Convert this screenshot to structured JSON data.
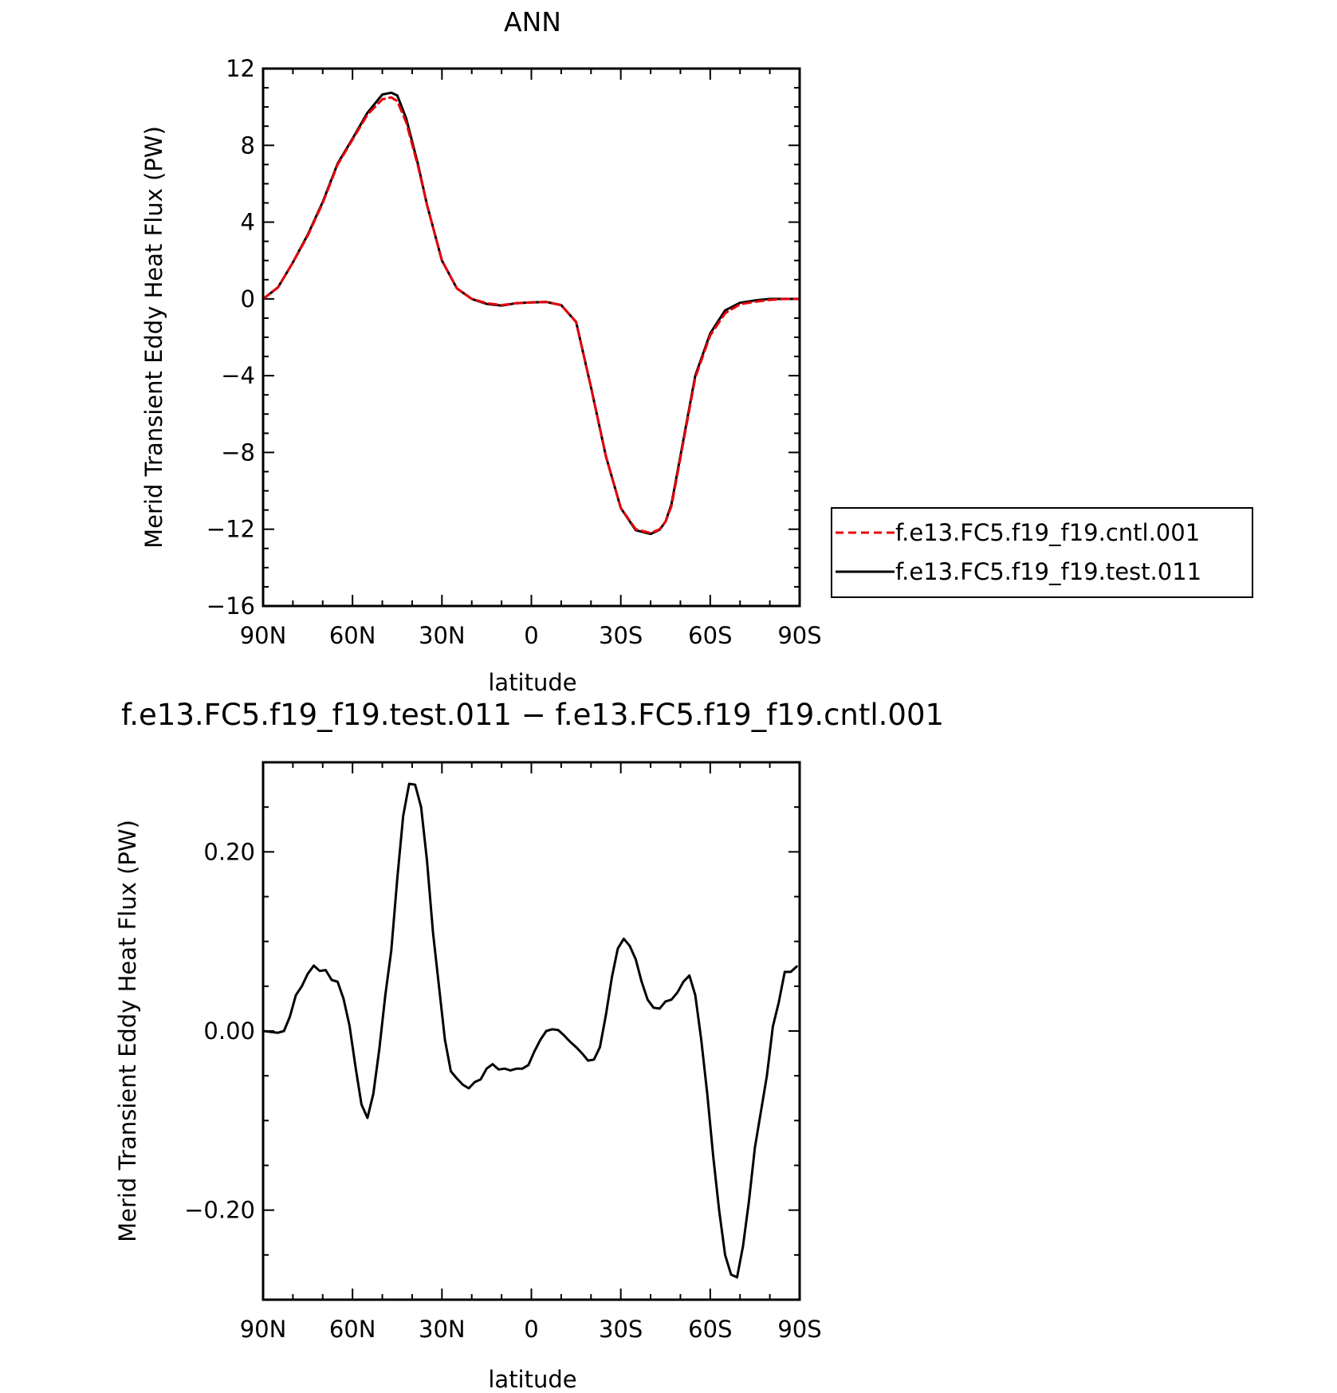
{
  "chart_data": [
    {
      "type": "line",
      "title": "ANN",
      "xlabel": "latitude",
      "ylabel": "Merid Transient Eddy Heat Flux (PW)",
      "xlim": [
        90,
        -90
      ],
      "ylim": [
        -16,
        12
      ],
      "xticks": [
        {
          "value": 90,
          "label": "90N"
        },
        {
          "value": 60,
          "label": "60N"
        },
        {
          "value": 30,
          "label": "30N"
        },
        {
          "value": 0,
          "label": "0"
        },
        {
          "value": -30,
          "label": "30S"
        },
        {
          "value": -60,
          "label": "60S"
        },
        {
          "value": -90,
          "label": "90S"
        }
      ],
      "yticks": [
        {
          "value": 12,
          "label": "12"
        },
        {
          "value": 8,
          "label": "8"
        },
        {
          "value": 4,
          "label": "4"
        },
        {
          "value": 0,
          "label": "0"
        },
        {
          "value": -4,
          "label": "−4"
        },
        {
          "value": -8,
          "label": "−8"
        },
        {
          "value": -12,
          "label": "−12"
        },
        {
          "value": -16,
          "label": "−16"
        }
      ],
      "legend_position": "right",
      "x": [
        90,
        85,
        80,
        75,
        70,
        65,
        60,
        55,
        50,
        47,
        45,
        42,
        38,
        35,
        30,
        25,
        20,
        15,
        10,
        5,
        0,
        -5,
        -10,
        -15,
        -20,
        -25,
        -30,
        -35,
        -40,
        -43,
        -45,
        -47,
        -50,
        -55,
        -60,
        -65,
        -70,
        -75,
        -80,
        -85,
        -90
      ],
      "series": [
        {
          "name": "f.e13.FC5.f19_f19.cntl.001",
          "color": "#e8000b",
          "dash": "dashed",
          "values": [
            0.0,
            0.6,
            1.9,
            3.3,
            5.0,
            7.0,
            8.3,
            9.6,
            10.4,
            10.5,
            10.3,
            9.2,
            6.9,
            4.9,
            2.0,
            0.55,
            0.0,
            -0.22,
            -0.32,
            -0.22,
            -0.18,
            -0.16,
            -0.32,
            -1.2,
            -4.6,
            -8.2,
            -10.9,
            -12.0,
            -12.2,
            -12.0,
            -11.6,
            -10.8,
            -8.3,
            -4.1,
            -1.9,
            -0.75,
            -0.28,
            -0.15,
            -0.05,
            0.0,
            0.0
          ]
        },
        {
          "name": "f.e13.FC5.f19_f19.test.011",
          "color": "#000000",
          "dash": "solid",
          "values": [
            0.0,
            0.6,
            1.9,
            3.35,
            5.05,
            7.05,
            8.35,
            9.7,
            10.65,
            10.74,
            10.6,
            9.4,
            7.0,
            4.9,
            2.0,
            0.55,
            0.0,
            -0.26,
            -0.35,
            -0.22,
            -0.18,
            -0.16,
            -0.32,
            -1.2,
            -4.6,
            -8.2,
            -10.9,
            -12.05,
            -12.25,
            -12.03,
            -11.6,
            -10.7,
            -8.2,
            -4.0,
            -1.8,
            -0.6,
            -0.2,
            -0.08,
            0.0,
            0.0,
            0.0
          ]
        }
      ]
    },
    {
      "type": "line",
      "title": "f.e13.FC5.f19_f19.test.011 − f.e13.FC5.f19_f19.cntl.001",
      "xlabel": "latitude",
      "ylabel": "Merid Transient Eddy Heat Flux (PW)",
      "xlim": [
        90,
        -90
      ],
      "ylim": [
        -0.3,
        0.3
      ],
      "xticks": [
        {
          "value": 90,
          "label": "90N"
        },
        {
          "value": 60,
          "label": "60N"
        },
        {
          "value": 30,
          "label": "30N"
        },
        {
          "value": 0,
          "label": "0"
        },
        {
          "value": -30,
          "label": "30S"
        },
        {
          "value": -60,
          "label": "60S"
        },
        {
          "value": -90,
          "label": "90S"
        }
      ],
      "yticks": [
        {
          "value": 0.2,
          "label": "0.20"
        },
        {
          "value": 0.0,
          "label": "0.00"
        },
        {
          "value": -0.2,
          "label": "−0.20"
        }
      ],
      "x": [
        90,
        85,
        83,
        81,
        79,
        77,
        75,
        73,
        71,
        69,
        67,
        65,
        63,
        61,
        59,
        57,
        55,
        53,
        51,
        49,
        47,
        45,
        43,
        41,
        39,
        37,
        35,
        33,
        31,
        29,
        27,
        25,
        23,
        21,
        19,
        17,
        15,
        13,
        11,
        9,
        7,
        5,
        3,
        1,
        -1,
        -3,
        -5,
        -7,
        -9,
        -11,
        -13,
        -15,
        -17,
        -19,
        -21,
        -23,
        -25,
        -27,
        -29,
        -31,
        -33,
        -35,
        -37,
        -39,
        -41,
        -43,
        -45,
        -47,
        -49,
        -51,
        -53,
        -55,
        -57,
        -59,
        -61,
        -63,
        -65,
        -67,
        -69,
        -71,
        -73,
        -75,
        -77,
        -79,
        -81,
        -83,
        -85,
        -87,
        -89
      ],
      "series": [
        {
          "name": "",
          "color": "#000000",
          "dash": "solid",
          "values": [
            0.0,
            -0.002,
            0.0,
            0.016,
            0.04,
            0.05,
            0.064,
            0.073,
            0.067,
            0.068,
            0.057,
            0.055,
            0.036,
            0.006,
            -0.04,
            -0.082,
            -0.097,
            -0.07,
            -0.02,
            0.04,
            0.09,
            0.17,
            0.24,
            0.276,
            0.275,
            0.25,
            0.19,
            0.11,
            0.05,
            -0.01,
            -0.045,
            -0.053,
            -0.06,
            -0.064,
            -0.057,
            -0.054,
            -0.042,
            -0.037,
            -0.043,
            -0.042,
            -0.044,
            -0.042,
            -0.042,
            -0.038,
            -0.023,
            -0.01,
            0.0,
            0.002,
            0.001,
            -0.005,
            -0.012,
            -0.018,
            -0.025,
            -0.033,
            -0.032,
            -0.018,
            0.018,
            0.06,
            0.092,
            0.103,
            0.095,
            0.08,
            0.055,
            0.035,
            0.026,
            0.025,
            0.033,
            0.035,
            0.043,
            0.055,
            0.062,
            0.04,
            -0.01,
            -0.07,
            -0.14,
            -0.2,
            -0.25,
            -0.272,
            -0.275,
            -0.24,
            -0.19,
            -0.13,
            -0.09,
            -0.05,
            0.005,
            0.032,
            0.066,
            0.066,
            0.072
          ]
        }
      ]
    }
  ]
}
